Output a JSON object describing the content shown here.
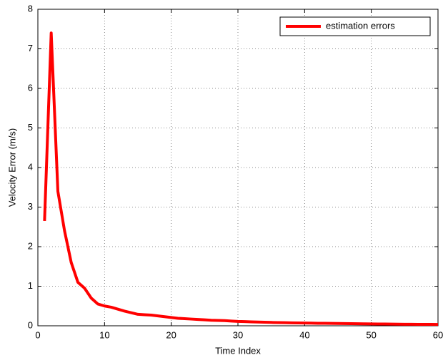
{
  "chart_data": {
    "type": "line",
    "xlabel": "Time Index",
    "ylabel": "Velocity Error (m/s)",
    "x": [
      1,
      2,
      3,
      4,
      5,
      6,
      7,
      8,
      9,
      10,
      11,
      12,
      13,
      14,
      15,
      16,
      17,
      18,
      19,
      20,
      21,
      22,
      23,
      24,
      25,
      26,
      27,
      28,
      29,
      30,
      31,
      32,
      33,
      34,
      35,
      36,
      37,
      38,
      39,
      40,
      41,
      42,
      43,
      44,
      45,
      46,
      47,
      48,
      49,
      50,
      51,
      52,
      53,
      54,
      55,
      56,
      57,
      58,
      59,
      60
    ],
    "series": [
      {
        "name": "estimation errors",
        "color": "#ff0000",
        "values": [
          2.65,
          7.4,
          3.4,
          2.4,
          1.6,
          1.1,
          0.95,
          0.7,
          0.55,
          0.5,
          0.47,
          0.42,
          0.37,
          0.33,
          0.29,
          0.28,
          0.27,
          0.25,
          0.23,
          0.21,
          0.19,
          0.18,
          0.17,
          0.16,
          0.15,
          0.14,
          0.135,
          0.13,
          0.12,
          0.11,
          0.105,
          0.1,
          0.095,
          0.09,
          0.085,
          0.08,
          0.078,
          0.075,
          0.072,
          0.07,
          0.067,
          0.064,
          0.062,
          0.06,
          0.058,
          0.056,
          0.054,
          0.052,
          0.05,
          0.048,
          0.046,
          0.044,
          0.042,
          0.04,
          0.039,
          0.038,
          0.037,
          0.036,
          0.035,
          0.034
        ]
      }
    ],
    "xlim": [
      0,
      60
    ],
    "xticks": [
      0,
      10,
      20,
      30,
      40,
      50,
      60
    ],
    "ylim": [
      0,
      8
    ],
    "yticks": [
      0,
      1,
      2,
      3,
      4,
      5,
      6,
      7,
      8
    ],
    "grid": true,
    "legend_position": "upper right"
  }
}
